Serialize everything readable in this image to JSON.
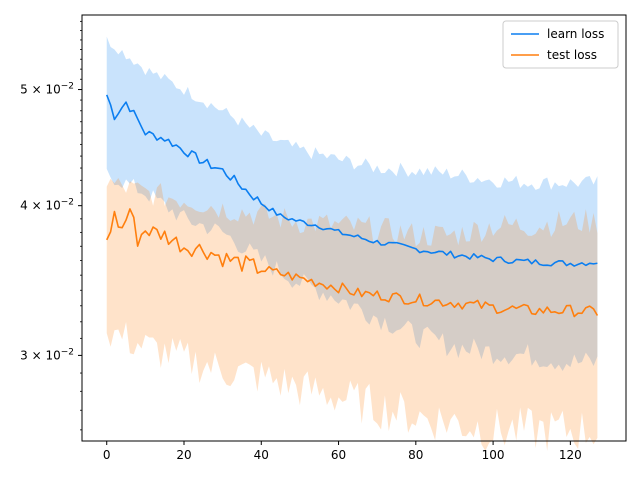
{
  "chart_data": {
    "type": "line",
    "xlabel": "",
    "ylabel": "",
    "yscale": "log",
    "xlim": [
      -6.4,
      134.4
    ],
    "ylim": [
      0.02545,
      0.0577
    ],
    "xticks": [
      0,
      20,
      40,
      60,
      80,
      100,
      120
    ],
    "yticks": [
      {
        "value": 0.03,
        "mantissa": "3",
        "base": "10",
        "exp": "−2"
      },
      {
        "value": 0.04,
        "mantissa": "4",
        "base": "10",
        "exp": "−2"
      },
      {
        "value": 0.05,
        "mantissa": "5",
        "base": "10",
        "exp": "−2"
      }
    ],
    "grid": false,
    "legend_position": "upper-right",
    "colors": {
      "learn": "#0b7ef0",
      "learn_band": "#cfe4fb",
      "test": "#ff7f0e",
      "test_band": "#ffe0c6",
      "overlap": "#d4d0cc"
    },
    "series": [
      {
        "name": "learn loss",
        "color_key": "learn",
        "anchors": [
          [
            0,
            0.0495
          ],
          [
            2,
            0.0475
          ],
          [
            5,
            0.0488
          ],
          [
            8,
            0.0472
          ],
          [
            10,
            0.046
          ],
          [
            15,
            0.0455
          ],
          [
            20,
            0.0445
          ],
          [
            25,
            0.0435
          ],
          [
            30,
            0.0428
          ],
          [
            35,
            0.0415
          ],
          [
            40,
            0.0402
          ],
          [
            45,
            0.0392
          ],
          [
            50,
            0.0388
          ],
          [
            55,
            0.0385
          ],
          [
            60,
            0.038
          ],
          [
            70,
            0.0373
          ],
          [
            80,
            0.0368
          ],
          [
            90,
            0.0364
          ],
          [
            100,
            0.0361
          ],
          [
            110,
            0.0359
          ],
          [
            120,
            0.0358
          ],
          [
            127,
            0.0359
          ]
        ],
        "spread": 0.00055,
        "band_upper": [
          [
            0,
            0.055
          ],
          [
            10,
            0.052
          ],
          [
            20,
            0.05
          ],
          [
            30,
            0.048
          ],
          [
            40,
            0.0458
          ],
          [
            50,
            0.0445
          ],
          [
            60,
            0.0437
          ],
          [
            70,
            0.043
          ],
          [
            80,
            0.0428
          ],
          [
            90,
            0.0425
          ],
          [
            100,
            0.042
          ],
          [
            110,
            0.0418
          ],
          [
            120,
            0.0418
          ],
          [
            127,
            0.0418
          ]
        ],
        "band_lower": [
          [
            0,
            0.0425
          ],
          [
            10,
            0.041
          ],
          [
            20,
            0.039
          ],
          [
            30,
            0.038
          ],
          [
            40,
            0.036
          ],
          [
            50,
            0.0345
          ],
          [
            60,
            0.0335
          ],
          [
            70,
            0.0323
          ],
          [
            80,
            0.0312
          ],
          [
            90,
            0.0305
          ],
          [
            100,
            0.0302
          ],
          [
            110,
            0.03
          ],
          [
            120,
            0.0296
          ],
          [
            127,
            0.0296
          ]
        ]
      },
      {
        "name": "test loss",
        "color_key": "test",
        "anchors": [
          [
            0,
            0.0375
          ],
          [
            2,
            0.0392
          ],
          [
            4,
            0.0382
          ],
          [
            6,
            0.0398
          ],
          [
            8,
            0.0375
          ],
          [
            10,
            0.0382
          ],
          [
            15,
            0.0378
          ],
          [
            20,
            0.037
          ],
          [
            25,
            0.0368
          ],
          [
            30,
            0.0362
          ],
          [
            35,
            0.0358
          ],
          [
            40,
            0.0354
          ],
          [
            50,
            0.0348
          ],
          [
            55,
            0.0345
          ],
          [
            60,
            0.0342
          ],
          [
            65,
            0.0338
          ],
          [
            70,
            0.0337
          ],
          [
            80,
            0.0334
          ],
          [
            90,
            0.0332
          ],
          [
            100,
            0.0329
          ],
          [
            110,
            0.0327
          ],
          [
            120,
            0.0327
          ],
          [
            127,
            0.0326
          ]
        ],
        "spread": 0.0009,
        "band_upper": [
          [
            0,
            0.0418
          ],
          [
            10,
            0.041
          ],
          [
            20,
            0.0405
          ],
          [
            30,
            0.0398
          ],
          [
            40,
            0.0393
          ],
          [
            50,
            0.0388
          ],
          [
            60,
            0.0385
          ],
          [
            70,
            0.0382
          ],
          [
            80,
            0.0378
          ],
          [
            90,
            0.0378
          ],
          [
            100,
            0.0385
          ],
          [
            110,
            0.0385
          ],
          [
            120,
            0.0388
          ],
          [
            127,
            0.0388
          ]
        ],
        "band_lower": [
          [
            0,
            0.0315
          ],
          [
            10,
            0.0305
          ],
          [
            20,
            0.0298
          ],
          [
            30,
            0.0292
          ],
          [
            40,
            0.0288
          ],
          [
            50,
            0.0282
          ],
          [
            60,
            0.0277
          ],
          [
            70,
            0.0272
          ],
          [
            80,
            0.0267
          ],
          [
            90,
            0.0264
          ],
          [
            100,
            0.026
          ],
          [
            110,
            0.026
          ],
          [
            120,
            0.026
          ],
          [
            127,
            0.026
          ]
        ]
      }
    ]
  }
}
